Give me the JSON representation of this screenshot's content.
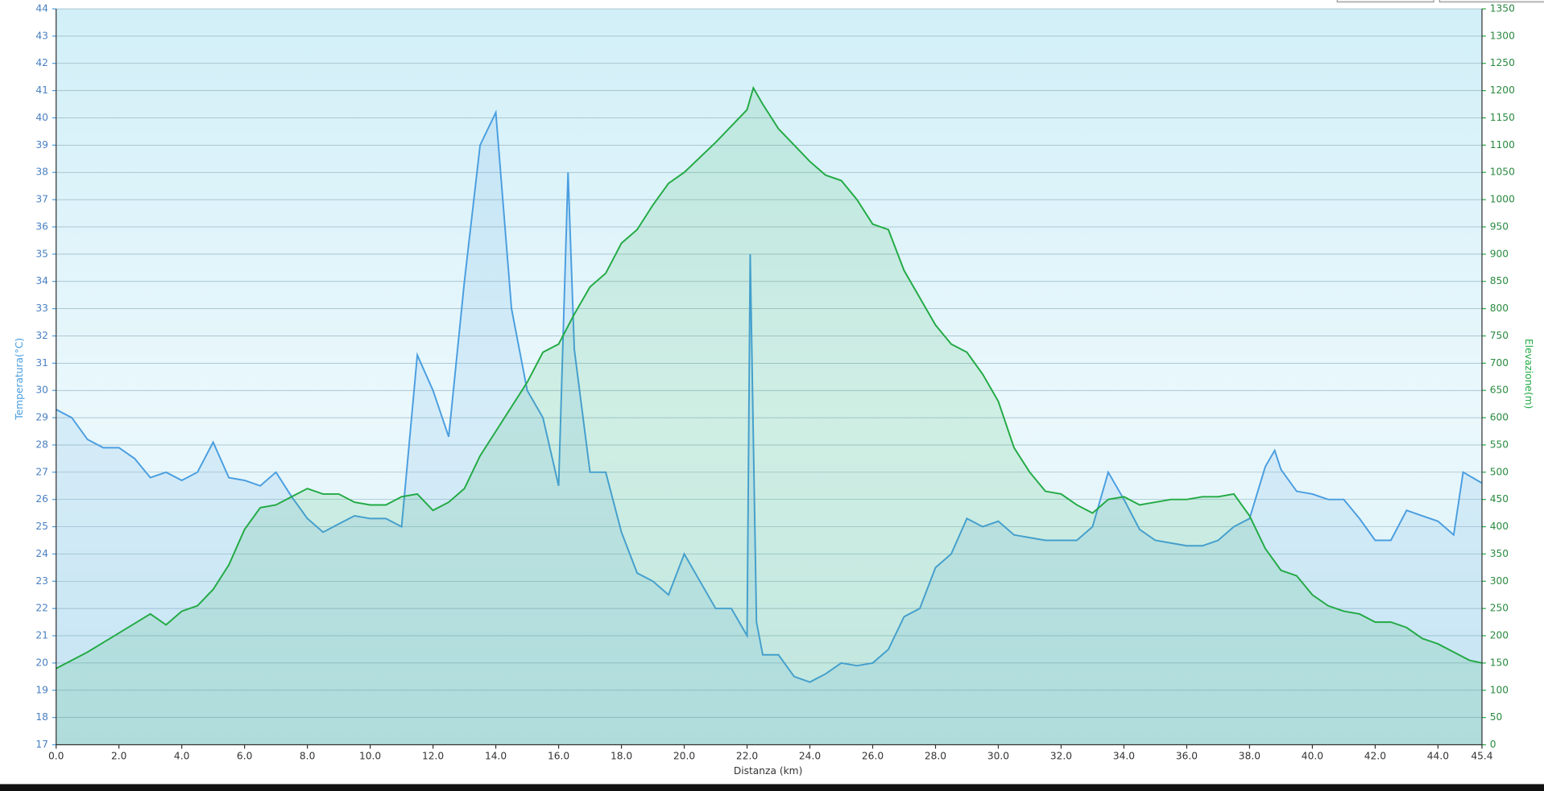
{
  "chart_data": {
    "type": "line",
    "xlabel": "Distanza  (km)",
    "ylabel": "Temperatura(°C)",
    "y2label": "Elevazione(m)",
    "xlim": [
      0,
      45.4
    ],
    "ylim": [
      17,
      44
    ],
    "y2lim": [
      0,
      1350
    ],
    "grid": true,
    "xticks": [
      {
        "value": 0,
        "label": "0.0"
      },
      {
        "value": 2,
        "label": "2.0"
      },
      {
        "value": 4,
        "label": "4.0"
      },
      {
        "value": 6,
        "label": "6.0"
      },
      {
        "value": 8,
        "label": "8.0"
      },
      {
        "value": 10,
        "label": "10.0"
      },
      {
        "value": 12,
        "label": "12.0"
      },
      {
        "value": 14,
        "label": "14.0"
      },
      {
        "value": 16,
        "label": "16.0"
      },
      {
        "value": 18,
        "label": "18.0"
      },
      {
        "value": 20,
        "label": "20.0"
      },
      {
        "value": 22,
        "label": "22.0"
      },
      {
        "value": 24,
        "label": "24.0"
      },
      {
        "value": 26,
        "label": "26.0"
      },
      {
        "value": 28,
        "label": "28.0"
      },
      {
        "value": 30,
        "label": "30.0"
      },
      {
        "value": 32,
        "label": "32.0"
      },
      {
        "value": 34,
        "label": "34.0"
      },
      {
        "value": 36,
        "label": "36.0"
      },
      {
        "value": 38,
        "label": "38.0"
      },
      {
        "value": 40,
        "label": "40.0"
      },
      {
        "value": 42,
        "label": "42.0"
      },
      {
        "value": 44,
        "label": "44.0"
      },
      {
        "value": 45.4,
        "label": "45.4"
      }
    ],
    "yticks": [
      17,
      18,
      19,
      20,
      21,
      22,
      23,
      24,
      25,
      26,
      27,
      28,
      29,
      30,
      31,
      32,
      33,
      34,
      35,
      36,
      37,
      38,
      39,
      40,
      41,
      42,
      43,
      44
    ],
    "y2ticks": [
      0,
      50,
      100,
      150,
      200,
      250,
      300,
      350,
      400,
      450,
      500,
      550,
      600,
      650,
      700,
      750,
      800,
      850,
      900,
      950,
      1000,
      1050,
      1100,
      1150,
      1200,
      1250,
      1300,
      1350
    ],
    "series": [
      {
        "name": "Temperatura",
        "color": "#4a9ee0",
        "axis": "y",
        "x": [
          0,
          0.5,
          1,
          1.5,
          2,
          2.5,
          3,
          3.5,
          4,
          4.5,
          5,
          5.5,
          6,
          6.5,
          7,
          7.5,
          8,
          8.5,
          9,
          9.5,
          10,
          10.5,
          11,
          11.5,
          12,
          12.5,
          13,
          13.5,
          14,
          14.5,
          15,
          15.5,
          16,
          16.3,
          16.5,
          17,
          17.5,
          18,
          18.5,
          19,
          19.5,
          20,
          20.5,
          21,
          21.5,
          22,
          22.1,
          22.3,
          22.5,
          23,
          23.5,
          24,
          24.5,
          25,
          25.5,
          26,
          26.5,
          27,
          27.5,
          28,
          28.5,
          29,
          29.5,
          30,
          30.5,
          31,
          31.5,
          32,
          32.5,
          33,
          33.5,
          34,
          34.5,
          35,
          35.5,
          36,
          36.5,
          37,
          37.5,
          38,
          38.5,
          38.8,
          39,
          39.5,
          40,
          40.5,
          41,
          41.5,
          42,
          42.5,
          43,
          43.5,
          44,
          44.5,
          44.8,
          45.4
        ],
        "values": [
          29.3,
          29,
          28.2,
          27.9,
          27.9,
          27.5,
          26.8,
          27,
          26.7,
          27,
          28.1,
          26.8,
          26.7,
          26.5,
          27,
          26.1,
          25.3,
          24.8,
          25.1,
          25.4,
          25.3,
          25.3,
          25,
          31.3,
          30,
          28.3,
          34,
          39,
          40.2,
          33,
          30,
          29,
          26.5,
          38,
          31.5,
          27,
          27,
          24.8,
          23.3,
          23,
          22.5,
          24,
          23,
          22,
          22,
          21,
          35,
          21.5,
          20.3,
          20.3,
          19.5,
          19.3,
          19.6,
          20,
          19.9,
          20,
          20.5,
          21.7,
          22,
          23.5,
          24,
          25.3,
          25,
          25.2,
          24.7,
          24.6,
          24.5,
          24.5,
          24.5,
          25,
          27,
          26,
          24.9,
          24.5,
          24.4,
          24.3,
          24.3,
          24.5,
          25,
          25.3,
          27.2,
          27.8,
          27.1,
          26.3,
          26.2,
          26,
          26,
          25.3,
          24.5,
          24.5,
          25.6,
          25.4,
          25.2,
          24.7,
          27,
          26.6
        ]
      },
      {
        "name": "Elevazione",
        "color": "#22aa44",
        "axis": "y2",
        "x": [
          0,
          1,
          2,
          3,
          3.5,
          4,
          4.5,
          5,
          5.5,
          6,
          6.5,
          7,
          7.5,
          8,
          8.5,
          9,
          9.5,
          10,
          10.5,
          11,
          11.5,
          12,
          12.5,
          13,
          13.5,
          14,
          14.5,
          15,
          15.5,
          16,
          16.5,
          17,
          17.5,
          18,
          18.5,
          19,
          19.5,
          20,
          21,
          22,
          22.2,
          22.5,
          23,
          23.5,
          24,
          24.5,
          25,
          25.5,
          26,
          26.5,
          27,
          27.5,
          28,
          28.5,
          29,
          29.5,
          30,
          30.5,
          31,
          31.5,
          32,
          32.5,
          33,
          33.5,
          34,
          34.5,
          35,
          35.5,
          36,
          36.5,
          37,
          37.5,
          38,
          38.5,
          39,
          39.5,
          40,
          40.5,
          41,
          41.5,
          42,
          42.5,
          43,
          43.5,
          44,
          44.5,
          45,
          45.4
        ],
        "values": [
          140,
          170,
          205,
          240,
          220,
          245,
          255,
          285,
          330,
          395,
          435,
          440,
          455,
          470,
          460,
          460,
          445,
          440,
          440,
          455,
          460,
          430,
          445,
          470,
          530,
          575,
          620,
          665,
          720,
          735,
          790,
          840,
          865,
          920,
          945,
          990,
          1030,
          1050,
          1105,
          1165,
          1205,
          1175,
          1130,
          1100,
          1070,
          1045,
          1035,
          1000,
          955,
          945,
          870,
          820,
          770,
          735,
          720,
          680,
          630,
          545,
          500,
          465,
          460,
          440,
          425,
          450,
          455,
          440,
          445,
          450,
          450,
          455,
          455,
          460,
          420,
          360,
          320,
          310,
          275,
          255,
          245,
          240,
          225,
          225,
          215,
          195,
          185,
          170,
          155,
          150
        ]
      }
    ]
  }
}
